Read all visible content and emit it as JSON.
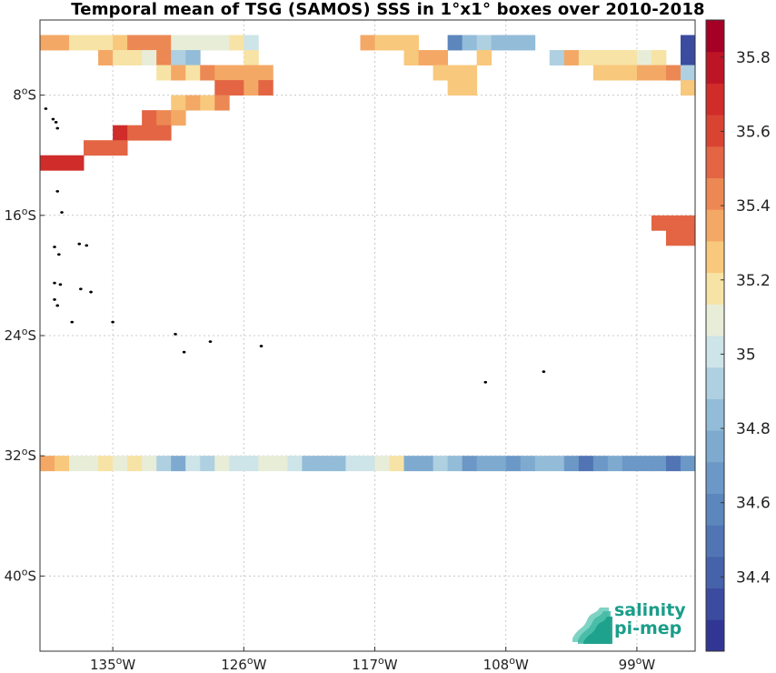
{
  "title": "Temporal mean of TSG (SAMOS) SSS in 1°x1° boxes over 2010-2018",
  "map": {
    "lon_range": [
      -140,
      -95
    ],
    "lat_range": [
      -45,
      -3
    ],
    "x_ticks": [
      {
        "lon": -135,
        "deg": "135",
        "hem": "W"
      },
      {
        "lon": -126,
        "deg": "126",
        "hem": "W"
      },
      {
        "lon": -117,
        "deg": "117",
        "hem": "W"
      },
      {
        "lon": -108,
        "deg": "108",
        "hem": "W"
      },
      {
        "lon": -99,
        "deg": "99",
        "hem": "W"
      }
    ],
    "y_ticks": [
      {
        "lat": -8,
        "deg": "8",
        "hem": "S"
      },
      {
        "lat": -16,
        "deg": "16",
        "hem": "S"
      },
      {
        "lat": -24,
        "deg": "24",
        "hem": "S"
      },
      {
        "lat": -32,
        "deg": "32",
        "hem": "S"
      },
      {
        "lat": -40,
        "deg": "40",
        "hem": "S"
      }
    ],
    "grid": true
  },
  "colorbar": {
    "range": [
      34.2,
      35.9
    ],
    "step": 0.1,
    "ticks": [
      "34.4",
      "34.6",
      "34.8",
      "35",
      "35.2",
      "35.4",
      "35.6",
      "35.8"
    ],
    "colors": [
      "#313695",
      "#3b4b9f",
      "#4562aa",
      "#5175b4",
      "#5c87bd",
      "#6b98c6",
      "#7eaad0",
      "#93bcd9",
      "#aed0e1",
      "#cde4e8",
      "#e8edd8",
      "#f7e3a5",
      "#f8c87c",
      "#f4a866",
      "#ec8853",
      "#e36543",
      "#d94432",
      "#cf2c2a",
      "#bd1526",
      "#a50026"
    ]
  },
  "logo": {
    "line1": "salinity",
    "line2": "pi-mep"
  },
  "sss_cells": [
    {
      "lon": -140,
      "lat": -4,
      "sss": 35.5
    },
    {
      "lon": -139,
      "lat": -4,
      "sss": 35.5
    },
    {
      "lon": -138,
      "lat": -4,
      "sss": 35.3
    },
    {
      "lon": -137,
      "lat": -4,
      "sss": 35.3
    },
    {
      "lon": -136,
      "lat": -4,
      "sss": 35.3
    },
    {
      "lon": -135,
      "lat": -4,
      "sss": 35.4
    },
    {
      "lon": -134,
      "lat": -4,
      "sss": 35.6
    },
    {
      "lon": -133,
      "lat": -4,
      "sss": 35.6
    },
    {
      "lon": -132,
      "lat": -4,
      "sss": 35.6
    },
    {
      "lon": -131,
      "lat": -4,
      "sss": 35.2
    },
    {
      "lon": -130,
      "lat": -4,
      "sss": 35.2
    },
    {
      "lon": -129,
      "lat": -4,
      "sss": 35.2
    },
    {
      "lon": -128,
      "lat": -4,
      "sss": 35.2
    },
    {
      "lon": -127,
      "lat": -4,
      "sss": 35.3
    },
    {
      "lon": -126,
      "lat": -4,
      "sss": 35.1
    },
    {
      "lon": -118,
      "lat": -4,
      "sss": 35.5
    },
    {
      "lon": -117,
      "lat": -4,
      "sss": 35.4
    },
    {
      "lon": -116,
      "lat": -4,
      "sss": 35.4
    },
    {
      "lon": -115,
      "lat": -4,
      "sss": 35.4
    },
    {
      "lon": -112,
      "lat": -4,
      "sss": 34.6
    },
    {
      "lon": -111,
      "lat": -4,
      "sss": 34.9
    },
    {
      "lon": -110,
      "lat": -4,
      "sss": 35.0
    },
    {
      "lon": -109,
      "lat": -4,
      "sss": 34.9
    },
    {
      "lon": -108,
      "lat": -4,
      "sss": 34.9
    },
    {
      "lon": -107,
      "lat": -4,
      "sss": 34.9
    },
    {
      "lon": -96,
      "lat": -4,
      "sss": 34.3
    },
    {
      "lon": -96,
      "lat": -5,
      "sss": 34.3
    },
    {
      "lon": -136,
      "lat": -5,
      "sss": 35.5
    },
    {
      "lon": -135,
      "lat": -5,
      "sss": 35.3
    },
    {
      "lon": -134,
      "lat": -5,
      "sss": 35.3
    },
    {
      "lon": -133,
      "lat": -5,
      "sss": 35.2
    },
    {
      "lon": -132,
      "lat": -5,
      "sss": 35.6
    },
    {
      "lon": -131,
      "lat": -5,
      "sss": 35.0
    },
    {
      "lon": -130,
      "lat": -5,
      "sss": 34.9
    },
    {
      "lon": -126,
      "lat": -5,
      "sss": 35.3
    },
    {
      "lon": -115,
      "lat": -5,
      "sss": 35.4
    },
    {
      "lon": -114,
      "lat": -5,
      "sss": 35.5
    },
    {
      "lon": -113,
      "lat": -5,
      "sss": 35.5
    },
    {
      "lon": -110,
      "lat": -5,
      "sss": 35.4
    },
    {
      "lon": -105,
      "lat": -5,
      "sss": 35.0
    },
    {
      "lon": -104,
      "lat": -5,
      "sss": 35.5
    },
    {
      "lon": -103,
      "lat": -5,
      "sss": 35.3
    },
    {
      "lon": -102,
      "lat": -5,
      "sss": 35.3
    },
    {
      "lon": -101,
      "lat": -5,
      "sss": 35.3
    },
    {
      "lon": -100,
      "lat": -5,
      "sss": 35.3
    },
    {
      "lon": -99,
      "lat": -5,
      "sss": 35.2
    },
    {
      "lon": -98,
      "lat": -5,
      "sss": 35.3
    },
    {
      "lon": -132,
      "lat": -6,
      "sss": 35.3
    },
    {
      "lon": -131,
      "lat": -6,
      "sss": 35.5
    },
    {
      "lon": -130,
      "lat": -6,
      "sss": 35.3
    },
    {
      "lon": -129,
      "lat": -6,
      "sss": 35.6
    },
    {
      "lon": -128,
      "lat": -6,
      "sss": 35.5
    },
    {
      "lon": -127,
      "lat": -6,
      "sss": 35.5
    },
    {
      "lon": -126,
      "lat": -6,
      "sss": 35.5
    },
    {
      "lon": -125,
      "lat": -6,
      "sss": 35.5
    },
    {
      "lon": -113,
      "lat": -6,
      "sss": 35.4
    },
    {
      "lon": -112,
      "lat": -6,
      "sss": 35.4
    },
    {
      "lon": -111,
      "lat": -6,
      "sss": 35.4
    },
    {
      "lon": -102,
      "lat": -6,
      "sss": 35.4
    },
    {
      "lon": -101,
      "lat": -6,
      "sss": 35.4
    },
    {
      "lon": -100,
      "lat": -6,
      "sss": 35.4
    },
    {
      "lon": -99,
      "lat": -6,
      "sss": 35.5
    },
    {
      "lon": -98,
      "lat": -6,
      "sss": 35.5
    },
    {
      "lon": -97,
      "lat": -6,
      "sss": 35.6
    },
    {
      "lon": -96,
      "lat": -6,
      "sss": 35.0
    },
    {
      "lon": -128,
      "lat": -7,
      "sss": 35.7
    },
    {
      "lon": -127,
      "lat": -7,
      "sss": 35.7
    },
    {
      "lon": -126,
      "lat": -7,
      "sss": 35.5
    },
    {
      "lon": -125,
      "lat": -7,
      "sss": 35.7
    },
    {
      "lon": -112,
      "lat": -7,
      "sss": 35.4
    },
    {
      "lon": -111,
      "lat": -7,
      "sss": 35.4
    },
    {
      "lon": -96,
      "lat": -7,
      "sss": 35.4
    },
    {
      "lon": -131,
      "lat": -8,
      "sss": 35.4
    },
    {
      "lon": -130,
      "lat": -8,
      "sss": 35.5
    },
    {
      "lon": -129,
      "lat": -8,
      "sss": 35.4
    },
    {
      "lon": -128,
      "lat": -8,
      "sss": 35.6
    },
    {
      "lon": -133,
      "lat": -9,
      "sss": 35.7
    },
    {
      "lon": -132,
      "lat": -9,
      "sss": 35.6
    },
    {
      "lon": -131,
      "lat": -9,
      "sss": 35.5
    },
    {
      "lon": -135,
      "lat": -10,
      "sss": 35.9
    },
    {
      "lon": -134,
      "lat": -10,
      "sss": 35.7
    },
    {
      "lon": -133,
      "lat": -10,
      "sss": 35.7
    },
    {
      "lon": -132,
      "lat": -10,
      "sss": 35.7
    },
    {
      "lon": -137,
      "lat": -11,
      "sss": 35.7
    },
    {
      "lon": -136,
      "lat": -11,
      "sss": 35.7
    },
    {
      "lon": -135,
      "lat": -11,
      "sss": 35.7
    },
    {
      "lon": -140,
      "lat": -12,
      "sss": 35.9
    },
    {
      "lon": -139,
      "lat": -12,
      "sss": 35.9
    },
    {
      "lon": -138,
      "lat": -12,
      "sss": 35.9
    },
    {
      "lon": -97,
      "lat": -16,
      "sss": 35.7
    },
    {
      "lon": -96,
      "lat": -16,
      "sss": 35.7
    },
    {
      "lon": -98,
      "lat": -16,
      "sss": 35.7
    },
    {
      "lon": -97,
      "lat": -17,
      "sss": 35.7
    },
    {
      "lon": -96,
      "lat": -17,
      "sss": 35.7
    },
    {
      "lon": -140,
      "lat": -32,
      "sss": 35.5
    },
    {
      "lon": -139,
      "lat": -32,
      "sss": 35.4
    },
    {
      "lon": -138,
      "lat": -32,
      "sss": 35.2
    },
    {
      "lon": -137,
      "lat": -32,
      "sss": 35.2
    },
    {
      "lon": -136,
      "lat": -32,
      "sss": 35.3
    },
    {
      "lon": -135,
      "lat": -32,
      "sss": 35.2
    },
    {
      "lon": -134,
      "lat": -32,
      "sss": 35.3
    },
    {
      "lon": -133,
      "lat": -32,
      "sss": 35.2
    },
    {
      "lon": -132,
      "lat": -32,
      "sss": 35.0
    },
    {
      "lon": -131,
      "lat": -32,
      "sss": 34.8
    },
    {
      "lon": -130,
      "lat": -32,
      "sss": 35.1
    },
    {
      "lon": -129,
      "lat": -32,
      "sss": 35.0
    },
    {
      "lon": -128,
      "lat": -32,
      "sss": 35.2
    },
    {
      "lon": -127,
      "lat": -32,
      "sss": 35.1
    },
    {
      "lon": -126,
      "lat": -32,
      "sss": 35.1
    },
    {
      "lon": -125,
      "lat": -32,
      "sss": 35.2
    },
    {
      "lon": -124,
      "lat": -32,
      "sss": 35.2
    },
    {
      "lon": -123,
      "lat": -32,
      "sss": 35.1
    },
    {
      "lon": -122,
      "lat": -32,
      "sss": 34.9
    },
    {
      "lon": -121,
      "lat": -32,
      "sss": 34.9
    },
    {
      "lon": -120,
      "lat": -32,
      "sss": 34.9
    },
    {
      "lon": -119,
      "lat": -32,
      "sss": 35.1
    },
    {
      "lon": -118,
      "lat": -32,
      "sss": 35.1
    },
    {
      "lon": -117,
      "lat": -32,
      "sss": 35.2
    },
    {
      "lon": -116,
      "lat": -32,
      "sss": 35.3
    },
    {
      "lon": -115,
      "lat": -32,
      "sss": 34.8
    },
    {
      "lon": -114,
      "lat": -32,
      "sss": 34.8
    },
    {
      "lon": -113,
      "lat": -32,
      "sss": 35.0
    },
    {
      "lon": -112,
      "lat": -32,
      "sss": 34.9
    },
    {
      "lon": -111,
      "lat": -32,
      "sss": 34.7
    },
    {
      "lon": -110,
      "lat": -32,
      "sss": 34.8
    },
    {
      "lon": -109,
      "lat": -32,
      "sss": 34.8
    },
    {
      "lon": -108,
      "lat": -32,
      "sss": 34.7
    },
    {
      "lon": -107,
      "lat": -32,
      "sss": 34.8
    },
    {
      "lon": -106,
      "lat": -32,
      "sss": 34.9
    },
    {
      "lon": -105,
      "lat": -32,
      "sss": 34.9
    },
    {
      "lon": -104,
      "lat": -32,
      "sss": 34.7
    },
    {
      "lon": -103,
      "lat": -32,
      "sss": 34.5
    },
    {
      "lon": -102,
      "lat": -32,
      "sss": 34.7
    },
    {
      "lon": -101,
      "lat": -32,
      "sss": 34.8
    },
    {
      "lon": -100,
      "lat": -32,
      "sss": 34.7
    },
    {
      "lon": -99,
      "lat": -32,
      "sss": 34.7
    },
    {
      "lon": -98,
      "lat": -32,
      "sss": 34.7
    },
    {
      "lon": -97,
      "lat": -32,
      "sss": 34.5
    },
    {
      "lon": -96,
      "lat": -32,
      "sss": 34.7
    }
  ],
  "islands": [
    {
      "lon": -139.6,
      "lat": -8.9
    },
    {
      "lon": -139.1,
      "lat": -9.6
    },
    {
      "lon": -138.9,
      "lat": -9.8
    },
    {
      "lon": -138.8,
      "lat": -10.2
    },
    {
      "lon": -138.8,
      "lat": -14.4
    },
    {
      "lon": -138.5,
      "lat": -15.8
    },
    {
      "lon": -139.0,
      "lat": -18.1
    },
    {
      "lon": -138.7,
      "lat": -18.6
    },
    {
      "lon": -137.3,
      "lat": -17.9
    },
    {
      "lon": -136.8,
      "lat": -18.0
    },
    {
      "lon": -139.0,
      "lat": -20.5
    },
    {
      "lon": -138.6,
      "lat": -20.6
    },
    {
      "lon": -137.2,
      "lat": -20.9
    },
    {
      "lon": -136.5,
      "lat": -21.1
    },
    {
      "lon": -139.0,
      "lat": -21.6
    },
    {
      "lon": -138.8,
      "lat": -22.0
    },
    {
      "lon": -137.8,
      "lat": -23.1
    },
    {
      "lon": -135.0,
      "lat": -23.1
    },
    {
      "lon": -130.7,
      "lat": -23.9
    },
    {
      "lon": -130.1,
      "lat": -25.1
    },
    {
      "lon": -128.3,
      "lat": -24.4
    },
    {
      "lon": -124.8,
      "lat": -24.7
    },
    {
      "lon": -109.4,
      "lat": -27.1
    },
    {
      "lon": -105.4,
      "lat": -26.4
    }
  ]
}
